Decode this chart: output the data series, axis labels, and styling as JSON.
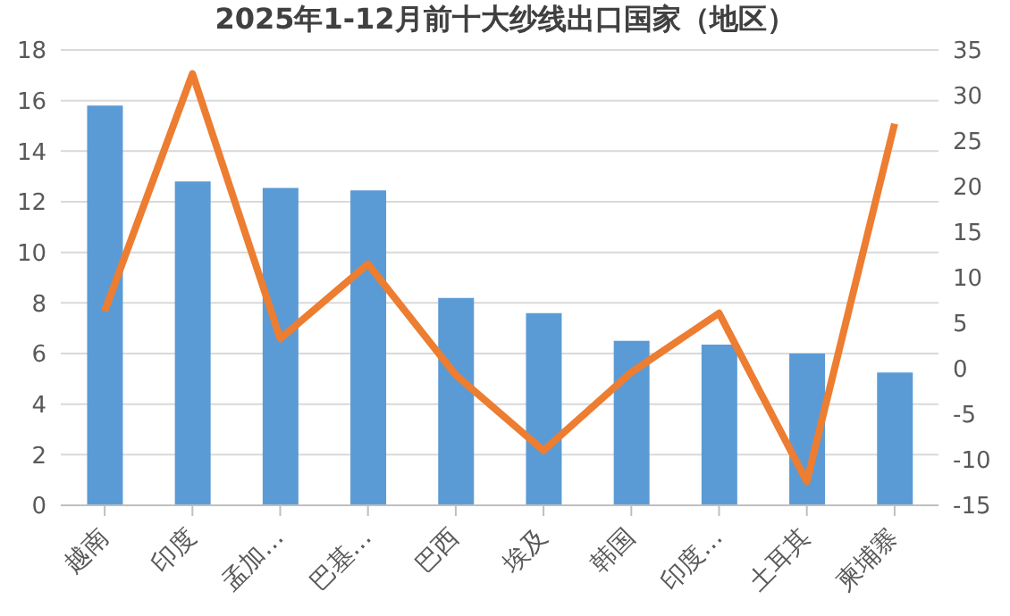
{
  "chart_data": {
    "type": "bar",
    "title": "2025年1-12月前十大纱线出口国家（地区）",
    "categories": [
      "越南",
      "印度",
      "孟加…",
      "巴基…",
      "巴西",
      "埃及",
      "韩国",
      "印度…",
      "土耳其",
      "柬埔寨"
    ],
    "series": [
      {
        "color": "#5b9bd5",
        "values": [
          15.8,
          12.8,
          12.55,
          12.45,
          8.2,
          7.6,
          6.5,
          6.35,
          6.0,
          5.25
        ]
      },
      {
        "type": "line",
        "axis": "y2",
        "color": "#ed7d31",
        "values": [
          6.3,
          32.4,
          3.3,
          11.5,
          -0.7,
          -9.0,
          -0.4,
          6.1,
          -12.4,
          26.9
        ]
      }
    ],
    "ylim": [
      0,
      18
    ],
    "yticks": [
      0,
      2,
      4,
      6,
      8,
      10,
      12,
      14,
      16,
      18
    ],
    "y2lim": [
      -15,
      35
    ],
    "y2ticks": [
      -15,
      -10,
      -5,
      0,
      5,
      10,
      15,
      20,
      25,
      30,
      35
    ],
    "grid": "y",
    "legend": false,
    "marker": "none",
    "line_style": "solid"
  }
}
